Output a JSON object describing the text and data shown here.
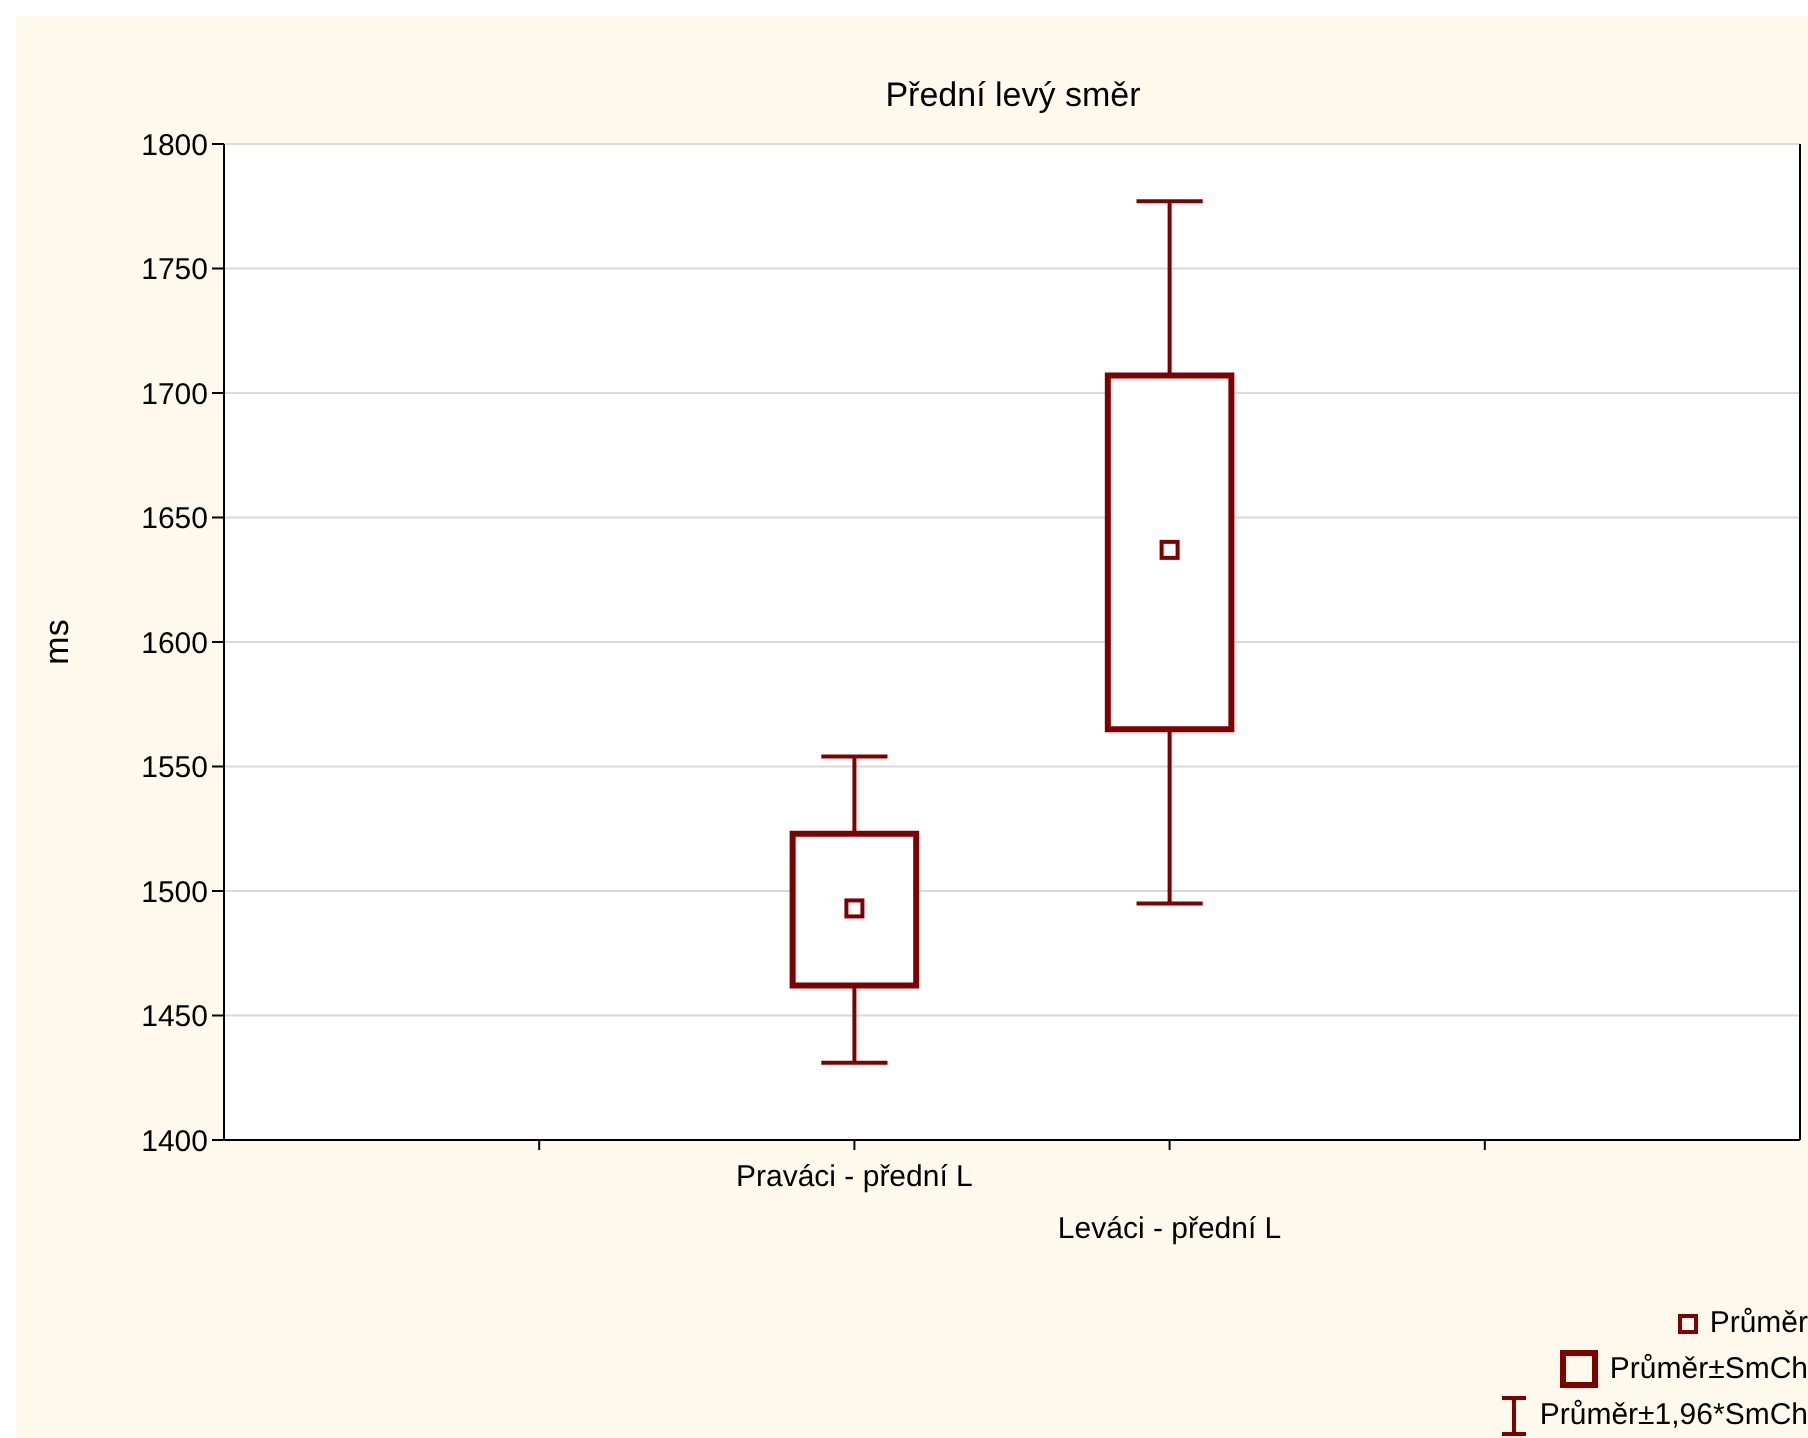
{
  "chart_data": {
    "type": "box",
    "title": "Přední levý směr",
    "ylabel": "ms",
    "categories": [
      null,
      "Praváci - přední L",
      "Leváci - přední L",
      null
    ],
    "boxes": [
      null,
      {
        "low": 1431,
        "q1": 1462,
        "q3": 1523,
        "high": 1554,
        "mean": 1493
      },
      {
        "low": 1495,
        "q1": 1565,
        "q3": 1707,
        "high": 1777,
        "mean": 1637
      },
      null
    ],
    "color": "#800000",
    "ylim": [
      1400,
      1800
    ],
    "yticks": [
      1400,
      1450,
      1500,
      1550,
      1600,
      1650,
      1700,
      1750,
      1800
    ],
    "grid": "y",
    "annotations": [
      "Průměr",
      "Průměr±SmCh",
      "Průměr±1,96*SmCh"
    ]
  }
}
